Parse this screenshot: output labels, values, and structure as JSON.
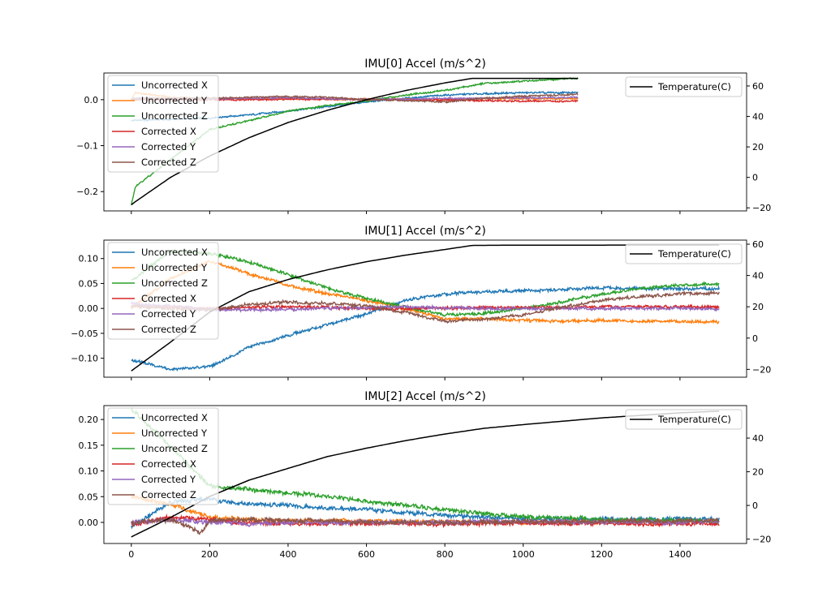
{
  "chart_data": [
    {
      "type": "line",
      "title": "IMU[0] Accel (m/s^2)",
      "xlim": [
        -70,
        1570
      ],
      "ylim": [
        -0.242,
        0.058
      ],
      "y2lim": [
        -22,
        68.5
      ],
      "yticks": [
        {
          "v": 0.0,
          "label": "0.0"
        },
        {
          "v": -0.1,
          "label": "−0.1"
        },
        {
          "v": -0.2,
          "label": "−0.2"
        }
      ],
      "y2ticks": [
        {
          "v": 60,
          "label": "60"
        },
        {
          "v": 40,
          "label": "40"
        },
        {
          "v": 20,
          "label": "20"
        },
        {
          "v": 0,
          "label": "0"
        },
        {
          "v": -20,
          "label": "−20"
        }
      ],
      "xticks": [
        {
          "v": 0,
          "label": ""
        },
        {
          "v": 200,
          "label": ""
        },
        {
          "v": 400,
          "label": ""
        },
        {
          "v": 600,
          "label": ""
        },
        {
          "v": 800,
          "label": ""
        },
        {
          "v": 1000,
          "label": ""
        },
        {
          "v": 1200,
          "label": ""
        },
        {
          "v": 1400,
          "label": ""
        }
      ],
      "x": [
        0,
        10,
        100,
        200,
        300,
        400,
        500,
        600,
        700,
        800,
        900,
        1000,
        1140
      ],
      "series": [
        {
          "name": "Uncorrected X",
          "color": "#1f77b4",
          "values": [
            -0.045,
            -0.045,
            -0.043,
            -0.04,
            -0.033,
            -0.025,
            -0.015,
            -0.005,
            0.003,
            0.01,
            0.013,
            0.015,
            0.015
          ]
        },
        {
          "name": "Uncorrected Y",
          "color": "#ff7f0e",
          "values": [
            0.0,
            0.015,
            0.005,
            0.002,
            0.002,
            0.002,
            0.001,
            0.001,
            0.001,
            0.0,
            0.002,
            0.002,
            0.002
          ]
        },
        {
          "name": "Uncorrected Z",
          "color": "#2ca02c",
          "values": [
            -0.23,
            -0.19,
            -0.13,
            -0.065,
            -0.045,
            -0.025,
            -0.013,
            -0.003,
            0.01,
            0.02,
            0.035,
            0.04,
            0.047
          ]
        },
        {
          "name": "Corrected X",
          "color": "#d62728",
          "values": [
            0,
            0,
            0,
            0,
            0,
            0.001,
            0.001,
            0,
            0,
            -0.001,
            -0.002,
            -0.003,
            -0.003
          ]
        },
        {
          "name": "Corrected Y",
          "color": "#9467bd",
          "values": [
            0.003,
            0.003,
            0.003,
            0.002,
            0.003,
            0.004,
            0.002,
            0.001,
            0.001,
            0.003,
            0.003,
            0.004,
            0.005
          ]
        },
        {
          "name": "Corrected Z",
          "color": "#8c564b",
          "values": [
            0.0,
            0.002,
            0.003,
            0.003,
            0.005,
            0.007,
            0.005,
            0.0,
            -0.002,
            -0.005,
            0.003,
            0.007,
            0.012
          ]
        }
      ],
      "temperature": {
        "name": "Temperature(C)",
        "color": "#000000",
        "x": [
          0,
          10,
          100,
          200,
          300,
          400,
          500,
          600,
          700,
          800,
          870,
          1000,
          1140
        ],
        "values": [
          -18,
          -16,
          0,
          14,
          26,
          36,
          44,
          51,
          57,
          62,
          65,
          65,
          65
        ]
      }
    },
    {
      "type": "line",
      "title": "IMU[1] Accel (m/s^2)",
      "xlim": [
        -70,
        1570
      ],
      "ylim": [
        -0.138,
        0.137
      ],
      "y2lim": [
        -25,
        62.6
      ],
      "yticks": [
        {
          "v": 0.1,
          "label": "0.10"
        },
        {
          "v": 0.05,
          "label": "0.05"
        },
        {
          "v": 0.0,
          "label": "0.00"
        },
        {
          "v": -0.05,
          "label": "−0.05"
        },
        {
          "v": -0.1,
          "label": "−0.10"
        }
      ],
      "y2ticks": [
        {
          "v": 60,
          "label": "60"
        },
        {
          "v": 40,
          "label": "40"
        },
        {
          "v": 20,
          "label": "20"
        },
        {
          "v": 0,
          "label": "0"
        },
        {
          "v": -20,
          "label": "−20"
        }
      ],
      "xticks": [
        {
          "v": 0,
          "label": ""
        },
        {
          "v": 200,
          "label": ""
        },
        {
          "v": 400,
          "label": ""
        },
        {
          "v": 600,
          "label": ""
        },
        {
          "v": 800,
          "label": ""
        },
        {
          "v": 1000,
          "label": ""
        },
        {
          "v": 1200,
          "label": ""
        },
        {
          "v": 1400,
          "label": ""
        }
      ],
      "x": [
        0,
        100,
        200,
        300,
        400,
        500,
        600,
        700,
        800,
        900,
        1000,
        1100,
        1200,
        1300,
        1400,
        1500
      ],
      "series": [
        {
          "name": "Uncorrected X",
          "color": "#1f77b4",
          "values": [
            -0.103,
            -0.122,
            -0.117,
            -0.078,
            -0.054,
            -0.033,
            -0.011,
            0.016,
            0.029,
            0.034,
            0.035,
            0.038,
            0.041,
            0.04,
            0.039,
            0.04
          ]
        },
        {
          "name": "Uncorrected Y",
          "color": "#ff7f0e",
          "values": [
            0.0,
            0.06,
            0.095,
            0.07,
            0.046,
            0.029,
            0.016,
            0.0,
            -0.021,
            -0.021,
            -0.024,
            -0.026,
            -0.024,
            -0.026,
            -0.026,
            -0.028
          ]
        },
        {
          "name": "Uncorrected Z",
          "color": "#2ca02c",
          "values": [
            0.055,
            0.115,
            0.11,
            0.093,
            0.068,
            0.04,
            0.02,
            0.003,
            -0.013,
            -0.01,
            0.0,
            0.013,
            0.029,
            0.04,
            0.046,
            0.05
          ]
        },
        {
          "name": "Corrected X",
          "color": "#d62728",
          "values": [
            0.005,
            0.003,
            0.0,
            0.002,
            0.003,
            0.002,
            0.0,
            -0.001,
            0.001,
            0.002,
            0.002,
            0.002,
            0.003,
            0.003,
            0.003,
            0.004
          ]
        },
        {
          "name": "Corrected Y",
          "color": "#9467bd",
          "values": [
            0.01,
            0.005,
            -0.002,
            -0.003,
            -0.002,
            0.0,
            0.001,
            0.003,
            0.001,
            0.0,
            0.0,
            0.0,
            0.0,
            0.0,
            0.0,
            -0.002
          ]
        },
        {
          "name": "Corrected Z",
          "color": "#8c564b",
          "values": [
            0.005,
            0.0,
            -0.003,
            0.008,
            0.013,
            0.01,
            0.005,
            -0.008,
            -0.026,
            -0.022,
            -0.013,
            0.003,
            0.016,
            0.024,
            0.029,
            0.031
          ]
        }
      ],
      "temperature": {
        "name": "Temperature(C)",
        "color": "#000000",
        "x": [
          0,
          100,
          200,
          300,
          400,
          500,
          600,
          700,
          800,
          870,
          1000,
          1100,
          1200,
          1300,
          1400,
          1500
        ],
        "values": [
          -21,
          -2.6,
          16.6,
          29.6,
          37.4,
          43.6,
          48.8,
          53,
          56.6,
          59.2,
          59.4,
          59.4,
          59.4,
          59.5,
          59.5,
          59.5
        ]
      }
    },
    {
      "type": "line",
      "title": "IMU[2] Accel (m/s^2)",
      "xlim": [
        -70,
        1570
      ],
      "ylim": [
        -0.041,
        0.227
      ],
      "y2lim": [
        -22.6,
        59.3
      ],
      "yticks": [
        {
          "v": 0.2,
          "label": "0.20"
        },
        {
          "v": 0.15,
          "label": "0.15"
        },
        {
          "v": 0.1,
          "label": "0.10"
        },
        {
          "v": 0.05,
          "label": "0.05"
        },
        {
          "v": 0.0,
          "label": "0.00"
        }
      ],
      "y2ticks": [
        {
          "v": 40,
          "label": "40"
        },
        {
          "v": 20,
          "label": "20"
        },
        {
          "v": 0,
          "label": "0"
        },
        {
          "v": -20,
          "label": "−20"
        }
      ],
      "xticks": [
        {
          "v": 0,
          "label": "0"
        },
        {
          "v": 200,
          "label": "200"
        },
        {
          "v": 400,
          "label": "400"
        },
        {
          "v": 600,
          "label": "600"
        },
        {
          "v": 800,
          "label": "800"
        },
        {
          "v": 1000,
          "label": "1000"
        },
        {
          "v": 1200,
          "label": "1200"
        },
        {
          "v": 1400,
          "label": "1400"
        }
      ],
      "x": [
        0,
        100,
        200,
        300,
        400,
        500,
        600,
        700,
        800,
        900,
        1000,
        1100,
        1200,
        1300,
        1400,
        1500
      ],
      "series": [
        {
          "name": "Uncorrected X",
          "color": "#1f77b4",
          "values": [
            -0.01,
            0.04,
            0.045,
            0.036,
            0.033,
            0.027,
            0.025,
            0.019,
            0.014,
            0.01,
            0.007,
            0.006,
            0.006,
            0.006,
            0.006,
            0.006
          ]
        },
        {
          "name": "Uncorrected Y",
          "color": "#ff7f0e",
          "values": [
            0.05,
            0.035,
            0.01,
            0.005,
            0.003,
            0.003,
            0.002,
            0.002,
            0.002,
            0.001,
            0.001,
            0.001,
            0.001,
            0.001,
            0.001,
            0.001
          ]
        },
        {
          "name": "Uncorrected Z",
          "color": "#2ca02c",
          "values": [
            0.22,
            0.148,
            0.07,
            0.064,
            0.057,
            0.051,
            0.041,
            0.033,
            0.025,
            0.017,
            0.011,
            0.009,
            0.006,
            0.004,
            0.004,
            0.001
          ]
        },
        {
          "name": "Corrected X",
          "color": "#d62728",
          "values": [
            -0.005,
            0.01,
            0.005,
            -0.002,
            -0.002,
            -0.002,
            -0.002,
            -0.002,
            -0.003,
            -0.002,
            -0.002,
            -0.002,
            -0.002,
            -0.003,
            -0.002,
            -0.003
          ]
        },
        {
          "name": "Corrected Y",
          "color": "#9467bd",
          "values": [
            0.0,
            0.005,
            0.0,
            -0.003,
            0.0,
            0.0,
            0.001,
            0.0,
            0.0,
            0.002,
            0.002,
            0.001,
            0.0,
            0.001,
            0.0,
            0.002
          ]
        },
        {
          "name": "Corrected Z",
          "color": "#8c564b",
          "x": [
            0,
            100,
            150,
            175,
            200,
            300,
            400,
            500,
            600,
            700,
            800,
            900,
            1000,
            1100,
            1200,
            1300,
            1400,
            1500
          ],
          "values": [
            0.0,
            0.005,
            -0.01,
            -0.022,
            0.003,
            0.005,
            0.004,
            0.003,
            0.001,
            0.0,
            0.0,
            0.0,
            0.001,
            0.001,
            0.002,
            0.003,
            0.003,
            0.004
          ]
        }
      ],
      "temperature": {
        "name": "Temperature(C)",
        "color": "#000000",
        "x": [
          0,
          100,
          200,
          300,
          400,
          500,
          600,
          700,
          800,
          900,
          1000,
          1100,
          1200,
          1300,
          1400,
          1500
        ],
        "values": [
          -18.7,
          -7.2,
          5.3,
          15,
          22,
          29,
          34,
          38.5,
          42.4,
          45.8,
          48,
          50,
          52,
          53.5,
          55,
          56
        ]
      }
    }
  ]
}
